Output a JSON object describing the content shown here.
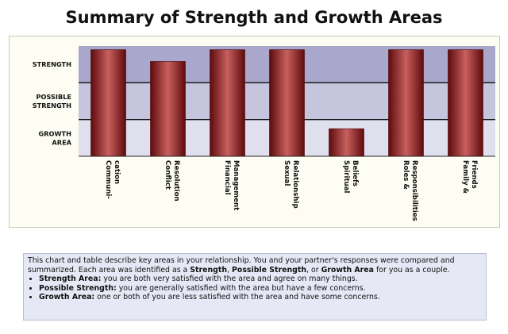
{
  "title": "Summary of Strength and Growth Areas",
  "chart_data": {
    "type": "bar",
    "title": "Summary of Strength and Growth Areas",
    "zones": [
      {
        "label_lines": [
          "STRENGTH"
        ],
        "color": "#a9a8cc"
      },
      {
        "label_lines": [
          "POSSIBLE",
          "STRENGTH"
        ],
        "color": "#c5c5de"
      },
      {
        "label_lines": [
          "GROWTH",
          "AREA"
        ],
        "color": "#dfdfee"
      }
    ],
    "categories": [
      {
        "lines": [
          "Communi-",
          "cation"
        ]
      },
      {
        "lines": [
          "Conflict",
          "Resolution"
        ]
      },
      {
        "lines": [
          "Financial",
          "Management"
        ]
      },
      {
        "lines": [
          "Sexual",
          "Relationship"
        ]
      },
      {
        "lines": [
          "Spiritual",
          "Beliefs"
        ]
      },
      {
        "lines": [
          "Roles &",
          "Responsibilities"
        ]
      },
      {
        "lines": [
          "Family &",
          "Friends"
        ]
      }
    ],
    "values": [
      2.9,
      2.58,
      2.9,
      2.9,
      0.75,
      2.9,
      2.9
    ],
    "ylim": [
      0,
      3
    ],
    "bar_color": "#7a0f12",
    "bar_highlight": "#c8605e"
  },
  "description": {
    "intro": "This chart and table describe key areas in your relationship.  You and your partner's responses were compared and summarized.  Each area was identified as a ",
    "intro_strength": "Strength",
    "intro_sep1": ", ",
    "intro_possible": "Possible Strength",
    "intro_sep2": ", or ",
    "intro_growth": "Growth Area",
    "intro_end": " for you as a couple.",
    "bullets": [
      {
        "term": "Strength Area:",
        "text": " you are both very satisfied with the area and agree on many things."
      },
      {
        "term": "Possible Strength:",
        "text": " you are generally satisfied with the area but have a few concerns."
      },
      {
        "term": "Growth Area:",
        "text": " one or both of you are less satisfied with the area and have some concerns."
      }
    ]
  }
}
